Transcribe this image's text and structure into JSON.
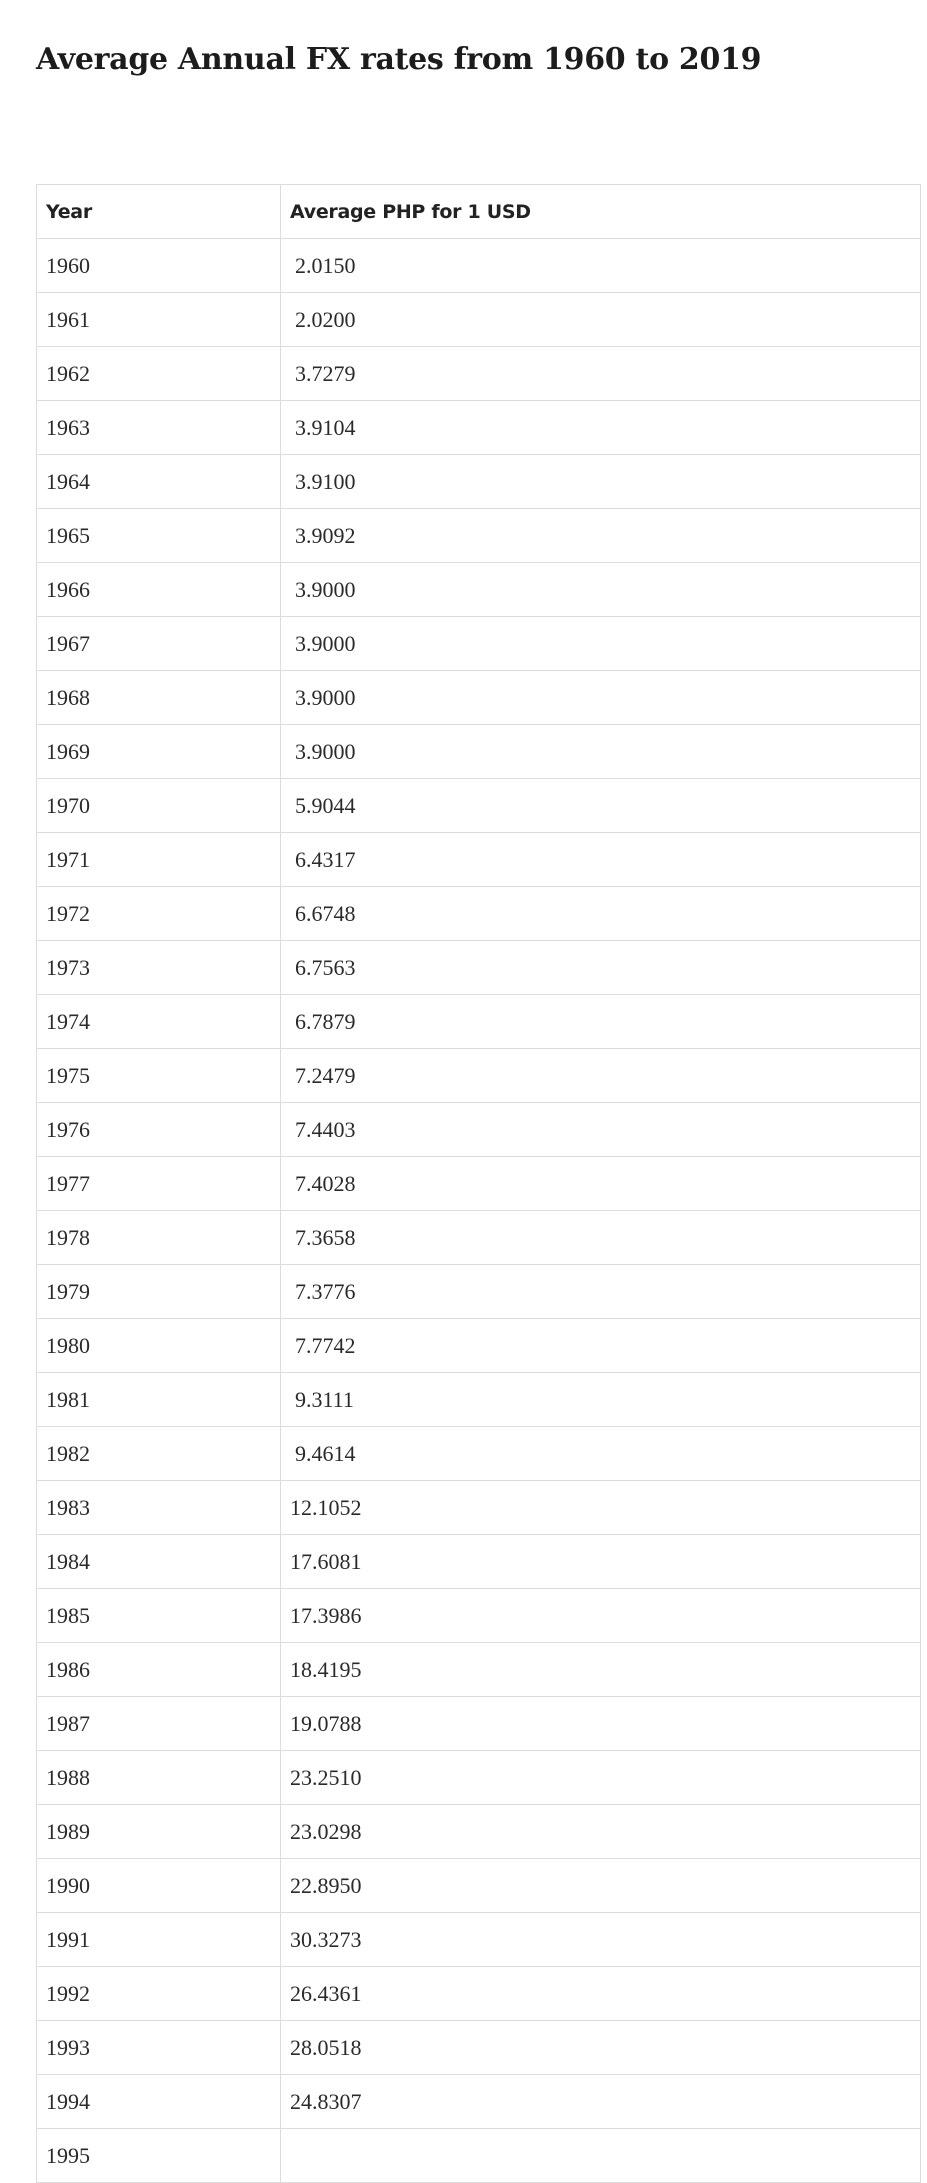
{
  "page": {
    "title": "Average Annual FX rates from 1960 to 2019"
  },
  "table": {
    "headers": {
      "year": "Year",
      "rate": "Average PHP for 1 USD"
    },
    "rows": [
      {
        "year": "1960",
        "rate": "2.0150"
      },
      {
        "year": "1961",
        "rate": "2.0200"
      },
      {
        "year": "1962",
        "rate": "3.7279"
      },
      {
        "year": "1963",
        "rate": "3.9104"
      },
      {
        "year": "1964",
        "rate": "3.9100"
      },
      {
        "year": "1965",
        "rate": "3.9092"
      },
      {
        "year": "1966",
        "rate": "3.9000"
      },
      {
        "year": "1967",
        "rate": "3.9000"
      },
      {
        "year": "1968",
        "rate": "3.9000"
      },
      {
        "year": "1969",
        "rate": "3.9000"
      },
      {
        "year": "1970",
        "rate": "5.9044"
      },
      {
        "year": "1971",
        "rate": "6.4317"
      },
      {
        "year": "1972",
        "rate": "6.6748"
      },
      {
        "year": "1973",
        "rate": "6.7563"
      },
      {
        "year": "1974",
        "rate": "6.7879"
      },
      {
        "year": "1975",
        "rate": "7.2479"
      },
      {
        "year": "1976",
        "rate": "7.4403"
      },
      {
        "year": "1977",
        "rate": "7.4028"
      },
      {
        "year": "1978",
        "rate": "7.3658"
      },
      {
        "year": "1979",
        "rate": "7.3776"
      },
      {
        "year": "1980",
        "rate": "7.7742"
      },
      {
        "year": "1981",
        "rate": "9.3111"
      },
      {
        "year": "1982",
        "rate": "9.4614"
      },
      {
        "year": "1983",
        "rate": "12.1052"
      },
      {
        "year": "1984",
        "rate": "17.6081"
      },
      {
        "year": "1985",
        "rate": "17.3986"
      },
      {
        "year": "1986",
        "rate": "18.4195"
      },
      {
        "year": "1987",
        "rate": "19.0788"
      },
      {
        "year": "1988",
        "rate": "23.2510"
      },
      {
        "year": "1989",
        "rate": "23.0298"
      },
      {
        "year": "1990",
        "rate": "22.8950"
      },
      {
        "year": "1991",
        "rate": "30.3273"
      },
      {
        "year": "1992",
        "rate": "26.4361"
      },
      {
        "year": "1993",
        "rate": "28.0518"
      },
      {
        "year": "1994",
        "rate": "24.8307"
      },
      {
        "year": "1995",
        "rate": ""
      }
    ]
  }
}
